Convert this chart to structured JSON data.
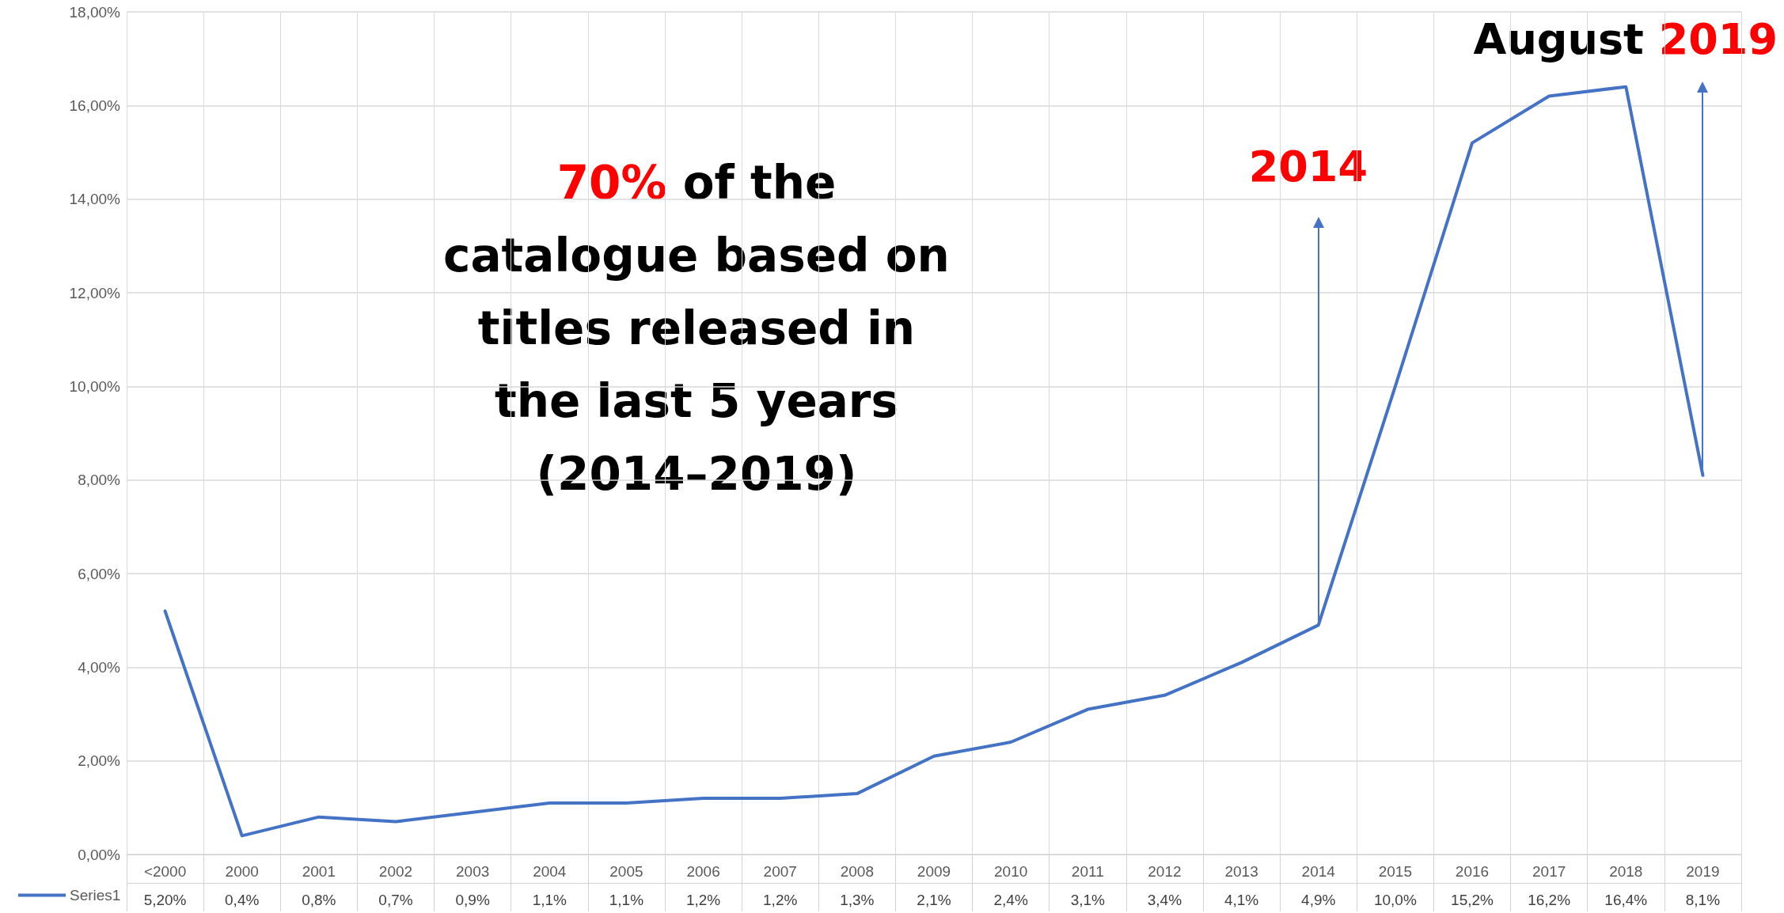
{
  "chart_data": {
    "type": "line",
    "categories": [
      "<2000",
      "2000",
      "2001",
      "2002",
      "2003",
      "2004",
      "2005",
      "2006",
      "2007",
      "2008",
      "2009",
      "2010",
      "2011",
      "2012",
      "2013",
      "2014",
      "2015",
      "2016",
      "2017",
      "2018",
      "2019"
    ],
    "series": [
      {
        "name": "Series1",
        "color": "#4472c4",
        "values": [
          5.2,
          0.4,
          0.8,
          0.7,
          0.9,
          1.1,
          1.1,
          1.2,
          1.2,
          1.3,
          2.1,
          2.4,
          3.1,
          3.4,
          4.1,
          4.9,
          10.0,
          15.2,
          16.2,
          16.4,
          8.1
        ],
        "value_labels": [
          "5,20%",
          "0,4%",
          "0,8%",
          "0,7%",
          "0,9%",
          "1,1%",
          "1,1%",
          "1,2%",
          "1,2%",
          "1,3%",
          "2,1%",
          "2,4%",
          "3,1%",
          "3,4%",
          "4,1%",
          "4,9%",
          "10,0%",
          "15,2%",
          "16,2%",
          "16,4%",
          "8,1%"
        ]
      }
    ],
    "ylim": [
      0,
      18
    ],
    "yticks": [
      {
        "value": 0,
        "label": "0,00%"
      },
      {
        "value": 2,
        "label": "2,00%"
      },
      {
        "value": 4,
        "label": "4,00%"
      },
      {
        "value": 6,
        "label": "6,00%"
      },
      {
        "value": 8,
        "label": "8,00%"
      },
      {
        "value": 10,
        "label": "10,00%"
      },
      {
        "value": 12,
        "label": "12,00%"
      },
      {
        "value": 14,
        "label": "14,00%"
      },
      {
        "value": 16,
        "label": "16,00%"
      },
      {
        "value": 18,
        "label": "18,00%"
      }
    ],
    "grid": true,
    "legend": "bottom left",
    "marker": "none",
    "line_style": "solid",
    "annotations": [
      "70% of the catalogue based on titles released in the last 5 years (2014–2019)",
      {
        "text": "2014",
        "x": "2014",
        "y": 4.9
      },
      {
        "text": "August 2019",
        "x": "2019",
        "y": 8.1
      }
    ]
  }
}
